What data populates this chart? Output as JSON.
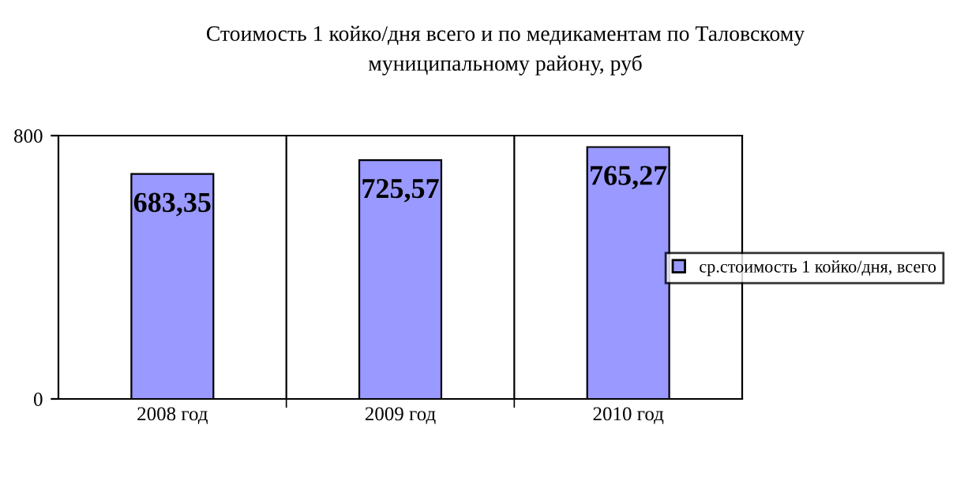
{
  "chart_data": {
    "type": "bar",
    "title": "Стоимость 1 койко/дня всего и по медикаментам по Таловскому\nмуниципальному району, руб",
    "categories": [
      "2008 год",
      "2009 год",
      "2010 год"
    ],
    "series": [
      {
        "name": "ср.стоимость 1 койко/дня, всего",
        "color": "#9999ff",
        "values": [
          683.35,
          725.57,
          765.27
        ],
        "value_labels": [
          "683,35",
          "725,57",
          "765,27"
        ]
      }
    ],
    "ylim": [
      0,
      800
    ],
    "yticks": [
      0,
      800
    ],
    "grid": "x",
    "legend": "right"
  }
}
